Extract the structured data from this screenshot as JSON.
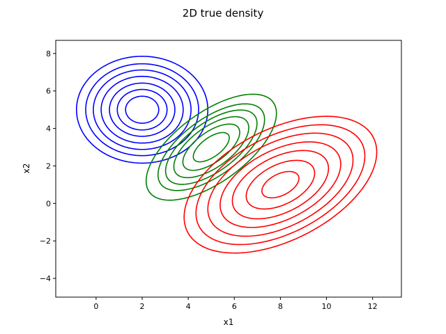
{
  "chart_data": {
    "type": "contour",
    "title": "2D true density",
    "xlabel": "x1",
    "ylabel": "x2",
    "xlim": [
      -1.75,
      13.25
    ],
    "ylim": [
      -5.0,
      8.7
    ],
    "x_ticks": [
      0,
      2,
      4,
      6,
      8,
      10,
      12
    ],
    "y_ticks": [
      -4,
      -2,
      0,
      2,
      4,
      6,
      8
    ],
    "x_tick_labels": [
      "0",
      "2",
      "4",
      "6",
      "8",
      "10",
      "12"
    ],
    "y_tick_labels": [
      "−4",
      "−2",
      "0",
      "2",
      "4",
      "6",
      "8"
    ],
    "grid": false,
    "series": [
      {
        "color": "#0000ff",
        "mean": [
          2.0,
          5.0
        ],
        "contour_half_axes": [
          [
            2.85,
            2.85
          ],
          [
            2.45,
            2.45
          ],
          [
            2.12,
            2.12
          ],
          [
            1.78,
            1.78
          ],
          [
            1.42,
            1.42
          ],
          [
            1.08,
            1.08
          ],
          [
            0.72,
            0.72
          ]
        ],
        "rotation_deg": 0
      },
      {
        "color": "#008000",
        "mean": [
          5.0,
          3.0
        ],
        "contour_half_axes": [
          [
            3.62,
            1.7
          ],
          [
            2.96,
            1.39
          ],
          [
            2.54,
            1.19
          ],
          [
            2.08,
            0.98
          ],
          [
            1.58,
            0.74
          ],
          [
            1.0,
            0.47
          ]
        ],
        "rotation_deg": 45
      },
      {
        "color": "#ff0000",
        "mean": [
          8.0,
          1.0
        ],
        "contour_half_axes": [
          [
            4.79,
            2.8
          ],
          [
            4.2,
            2.45
          ],
          [
            3.61,
            2.11
          ],
          [
            3.0,
            1.75
          ],
          [
            2.39,
            1.4
          ],
          [
            1.7,
            1.0
          ],
          [
            0.92,
            0.54
          ]
        ],
        "rotation_deg": 37
      }
    ]
  }
}
